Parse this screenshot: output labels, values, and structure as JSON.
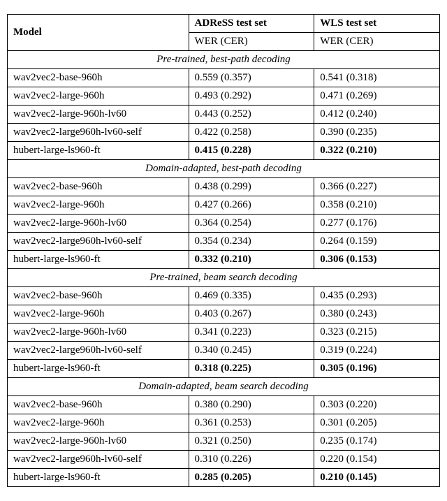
{
  "table": {
    "header": {
      "model_label": "Model",
      "col2_top": "ADReSS test set",
      "col3_top": "WLS test set",
      "wer_cer": "WER (CER)"
    },
    "sections": [
      {
        "title": "Pre-trained, best-path decoding",
        "rows": [
          {
            "model": "wav2vec2-base-960h",
            "adress": "0.559 (0.357)",
            "wls": "0.541 (0.318)",
            "bold": false
          },
          {
            "model": "wav2vec2-large-960h",
            "adress": "0.493 (0.292)",
            "wls": "0.471 (0.269)",
            "bold": false
          },
          {
            "model": "wav2vec2-large-960h-lv60",
            "adress": "0.443 (0.252)",
            "wls": "0.412 (0.240)",
            "bold": false
          },
          {
            "model": "wav2vec2-large960h-lv60-self",
            "adress": "0.422 (0.258)",
            "wls": "0.390 (0.235)",
            "bold": false
          },
          {
            "model": "hubert-large-ls960-ft",
            "adress": "0.415 (0.228)",
            "wls": "0.322 (0.210)",
            "bold": true
          }
        ]
      },
      {
        "title": "Domain-adapted, best-path decoding",
        "rows": [
          {
            "model": "wav2vec2-base-960h",
            "adress": "0.438 (0.299)",
            "wls": "0.366 (0.227)",
            "bold": false
          },
          {
            "model": "wav2vec2-large-960h",
            "adress": "0.427 (0.266)",
            "wls": "0.358 (0.210)",
            "bold": false
          },
          {
            "model": "wav2vec2-large-960h-lv60",
            "adress": "0.364 (0.254)",
            "wls": "0.277 (0.176)",
            "bold": false
          },
          {
            "model": "wav2vec2-large960h-lv60-self",
            "adress": "0.354 (0.234)",
            "wls": "0.264 (0.159)",
            "bold": false
          },
          {
            "model": "hubert-large-ls960-ft",
            "adress": "0.332 (0.210)",
            "wls": "0.306 (0.153)",
            "bold": true
          }
        ]
      },
      {
        "title": "Pre-trained, beam search decoding",
        "rows": [
          {
            "model": "wav2vec2-base-960h",
            "adress": "0.469 (0.335)",
            "wls": "0.435 (0.293)",
            "bold": false
          },
          {
            "model": "wav2vec2-large-960h",
            "adress": "0.403 (0.267)",
            "wls": "0.380 (0.243)",
            "bold": false
          },
          {
            "model": "wav2vec2-large-960h-lv60",
            "adress": "0.341 (0.223)",
            "wls": "0.323 (0.215)",
            "bold": false
          },
          {
            "model": "wav2vec2-large960h-lv60-self",
            "adress": "0.340 (0.245)",
            "wls": "0.319 (0.224)",
            "bold": false
          },
          {
            "model": "hubert-large-ls960-ft",
            "adress": "0.318 (0.225)",
            "wls": "0.305 (0.196)",
            "bold": true
          }
        ]
      },
      {
        "title": "Domain-adapted, beam search decoding",
        "rows": [
          {
            "model": "wav2vec2-base-960h",
            "adress": "0.380 (0.290)",
            "wls": "0.303 (0.220)",
            "bold": false
          },
          {
            "model": "wav2vec2-large-960h",
            "adress": "0.361 (0.253)",
            "wls": "0.301 (0.205)",
            "bold": false
          },
          {
            "model": "wav2vec2-large-960h-lv60",
            "adress": "0.321 (0.250)",
            "wls": "0.235 (0.174)",
            "bold": false
          },
          {
            "model": "wav2vec2-large960h-lv60-self",
            "adress": "0.310 (0.226)",
            "wls": "0.220 (0.154)",
            "bold": false
          },
          {
            "model": "hubert-large-ls960-ft",
            "adress": "0.285 (0.205)",
            "wls": "0.210 (0.145)",
            "bold": true
          }
        ]
      }
    ]
  },
  "style": {
    "font_family": "Times New Roman",
    "font_size_pt": 15,
    "border_color": "#000000",
    "background_color": "#ffffff"
  }
}
